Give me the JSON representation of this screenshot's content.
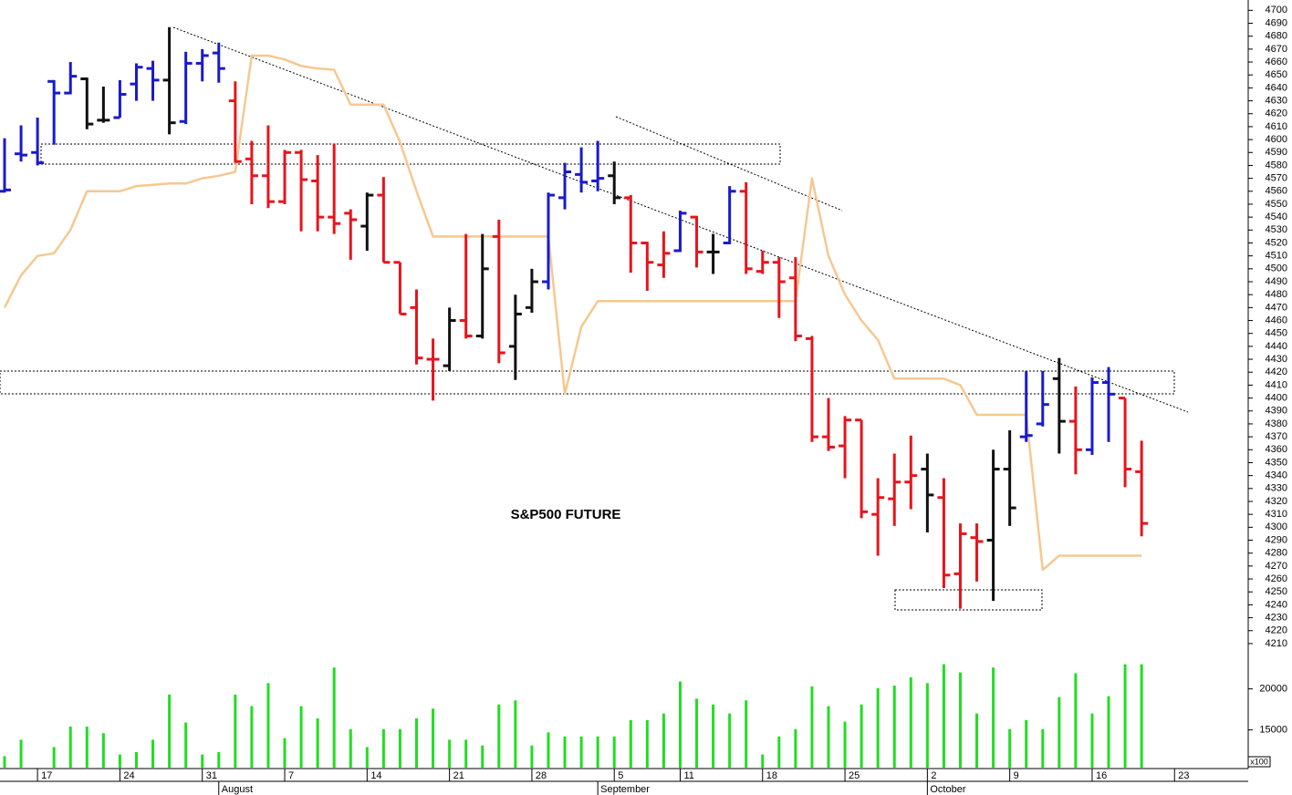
{
  "chart_data": {
    "type": "ohlc",
    "title": "S&P500 FUTURE",
    "categories": [
      null,
      null,
      "17",
      null,
      null,
      null,
      null,
      "24",
      null,
      null,
      null,
      null,
      "31",
      null,
      null,
      null,
      null,
      "7",
      null,
      null,
      null,
      null,
      "14",
      null,
      null,
      null,
      null,
      "21",
      null,
      null,
      null,
      null,
      "28",
      null,
      null,
      null,
      null,
      "5",
      null,
      null,
      null,
      "11",
      null,
      null,
      null,
      null,
      "18",
      null,
      null,
      null,
      null,
      "25",
      null,
      null,
      null,
      null,
      "2",
      null,
      null,
      null,
      null,
      "9",
      null,
      null,
      null,
      null,
      "16",
      null,
      null,
      null,
      null,
      "23"
    ],
    "month_labels": [
      null,
      null,
      null,
      null,
      null,
      null,
      null,
      null,
      null,
      null,
      null,
      null,
      null,
      "August",
      null,
      null,
      null,
      null,
      null,
      null,
      null,
      null,
      null,
      null,
      null,
      null,
      null,
      null,
      null,
      null,
      null,
      null,
      null,
      null,
      null,
      null,
      "September",
      null,
      null,
      null,
      null,
      null,
      null,
      null,
      null,
      null,
      null,
      null,
      null,
      null,
      null,
      null,
      null,
      null,
      null,
      null,
      "October",
      null,
      null,
      null,
      null,
      null,
      null,
      null,
      null,
      null,
      null,
      null,
      null,
      null,
      null,
      null
    ],
    "open": [
      4560,
      4589,
      4590,
      4645,
      4636,
      4647,
      4615,
      4617,
      4643,
      4655,
      4646,
      4614,
      4659,
      4667,
      4630,
      4585,
      4572,
      4552,
      4590,
      4568,
      4540,
      4543,
      4533,
      4557,
      4505,
      4470,
      4430,
      4425,
      4460,
      4448,
      4525,
      4440,
      4470,
      4490,
      4555,
      4573,
      4568,
      4572,
      4555,
      4520,
      4503,
      4514,
      4540,
      4513,
      4520,
      4560,
      4498,
      4505,
      4493,
      4446,
      4370,
      4363,
      4383,
      4310,
      4322,
      4335,
      4345,
      4323,
      4264,
      4292,
      4290,
      4345,
      4370,
      4380,
      4415,
      4382,
      4360,
      4412,
      4400,
      4343,
      null,
      null
    ],
    "high": [
      4601,
      4611,
      4617,
      4646,
      4660,
      4648,
      4641,
      4646,
      4659,
      4661,
      4687,
      4668,
      4670,
      4675,
      4645,
      4599,
      4611,
      4592,
      4592,
      4588,
      4597,
      4546,
      4559,
      4571,
      4505,
      4484,
      4446,
      4470,
      4527,
      4527,
      4538,
      4480,
      4500,
      4559,
      4582,
      4594,
      4599,
      4583,
      4557,
      4521,
      4529,
      4545,
      4541,
      4527,
      4564,
      4567,
      4514,
      4509,
      4509,
      4448,
      4400,
      4386,
      4383,
      4338,
      4357,
      4371,
      4357,
      4338,
      4303,
      4303,
      4360,
      4375,
      4421,
      4421,
      4431,
      4409,
      4416,
      4424,
      4400,
      4367,
      null,
      null
    ],
    "low": [
      4559,
      4583,
      4580,
      4596,
      4635,
      4608,
      4613,
      4617,
      4630,
      4630,
      4604,
      4612,
      4645,
      4644,
      4582,
      4550,
      4547,
      4550,
      4529,
      4529,
      4527,
      4507,
      4514,
      4505,
      4465,
      4426,
      4398,
      4421,
      4446,
      4446,
      4427,
      4414,
      4466,
      4484,
      4546,
      4559,
      4560,
      4550,
      4497,
      4483,
      4493,
      4513,
      4501,
      4496,
      4519,
      4496,
      4496,
      4462,
      4444,
      4366,
      4359,
      4338,
      4307,
      4278,
      4301,
      4314,
      4296,
      4253,
      4237,
      4258,
      4243,
      4301,
      4366,
      4378,
      4357,
      4341,
      4356,
      4366,
      4331,
      4293,
      null,
      null
    ],
    "close": [
      4561,
      4588,
      4582,
      4636,
      4649,
      4612,
      4615,
      4635,
      4656,
      4646,
      4613,
      4659,
      4665,
      4655,
      4583,
      4572,
      4552,
      4590,
      4569,
      4540,
      4535,
      4538,
      4557,
      4505,
      4465,
      4431,
      4430,
      4460,
      4448,
      4500,
      4435,
      4465,
      4490,
      4557,
      4575,
      4567,
      4570,
      4555,
      4520,
      4505,
      4512,
      4543,
      4513,
      4513,
      4560,
      4500,
      4505,
      4490,
      4448,
      4370,
      4362,
      4383,
      4312,
      4323,
      4335,
      4340,
      4325,
      4263,
      4295,
      4289,
      4345,
      4315,
      4371,
      4395,
      4382,
      4360,
      4412,
      4403,
      4345,
      4303,
      null,
      null
    ],
    "colors": [
      "#1a1acc",
      "#1a1acc",
      "#1a1acc",
      "#1a1acc",
      "#1a1acc",
      "#111111",
      "#111111",
      "#1a1acc",
      "#1a1acc",
      "#1a1acc",
      "#111111",
      "#1a1acc",
      "#1a1acc",
      "#1a1acc",
      "#e8141c",
      "#e8141c",
      "#e8141c",
      "#e8141c",
      "#e8141c",
      "#e8141c",
      "#e8141c",
      "#e8141c",
      "#111111",
      "#e8141c",
      "#e8141c",
      "#e8141c",
      "#e8141c",
      "#111111",
      "#e8141c",
      "#111111",
      "#e8141c",
      "#111111",
      "#111111",
      "#1a1acc",
      "#1a1acc",
      "#1a1acc",
      "#1a1acc",
      "#111111",
      "#e8141c",
      "#e8141c",
      "#e8141c",
      "#1a1acc",
      "#e8141c",
      "#111111",
      "#1a1acc",
      "#e8141c",
      "#e8141c",
      "#e8141c",
      "#e8141c",
      "#e8141c",
      "#e8141c",
      "#e8141c",
      "#e8141c",
      "#e8141c",
      "#e8141c",
      "#e8141c",
      "#111111",
      "#e8141c",
      "#e8141c",
      "#e8141c",
      "#111111",
      "#111111",
      "#1a1acc",
      "#1a1acc",
      "#111111",
      "#e8141c",
      "#1a1acc",
      "#1a1acc",
      "#e8141c",
      "#e8141c",
      null,
      null
    ],
    "overlay": {
      "color": "#f5c891",
      "values": [
        4470,
        4495,
        4510,
        4512,
        4530,
        4560,
        4560,
        4560,
        4564,
        4565,
        4566,
        4566,
        4570,
        4572,
        4575,
        4665,
        4665,
        4662,
        4657,
        4655,
        4654,
        4627,
        4627,
        4627,
        4598,
        4560,
        4525,
        4525,
        4525,
        4525,
        4525,
        4525,
        4525,
        4525,
        4403,
        4455,
        4475,
        4475,
        4475,
        4475,
        4475,
        4475,
        4475,
        4475,
        4475,
        4475,
        4475,
        4475,
        4475,
        4570,
        4510,
        4480,
        4460,
        4445,
        4415,
        4415,
        4415,
        4415,
        4410,
        4387,
        4387,
        4387,
        4387,
        4267,
        4278,
        4278,
        4278,
        4278,
        4278,
        4278,
        null,
        null
      ]
    },
    "volume": {
      "color": "#22dd22",
      "unit_label": "x100",
      "ylim": [
        10400,
        23400
      ],
      "yticks": [
        15000,
        20000
      ],
      "values": [
        11800,
        13800,
        null,
        12900,
        15400,
        15400,
        14600,
        12000,
        12300,
        13800,
        19300,
        15900,
        12000,
        12300,
        19300,
        17900,
        20700,
        14000,
        17900,
        16400,
        22600,
        15100,
        12900,
        15100,
        15100,
        16400,
        17600,
        13800,
        13800,
        13100,
        18100,
        18600,
        13100,
        14700,
        14200,
        14200,
        14200,
        14200,
        16200,
        16200,
        17000,
        20900,
        18800,
        18100,
        17000,
        18600,
        12000,
        14200,
        15100,
        20300,
        17900,
        16000,
        18100,
        20100,
        20400,
        21400,
        20700,
        23000,
        22000,
        17000,
        22600,
        15100,
        16200,
        15100,
        19000,
        21900,
        17000,
        19100,
        23000,
        23000,
        null,
        null
      ]
    },
    "ylim": [
      4205,
      4708
    ],
    "yticks": [
      4210,
      4220,
      4230,
      4240,
      4250,
      4260,
      4270,
      4280,
      4290,
      4300,
      4310,
      4320,
      4330,
      4340,
      4350,
      4360,
      4370,
      4380,
      4390,
      4400,
      4410,
      4420,
      4430,
      4440,
      4450,
      4460,
      4470,
      4480,
      4490,
      4500,
      4510,
      4520,
      4530,
      4540,
      4550,
      4560,
      4570,
      4580,
      4590,
      4600,
      4610,
      4620,
      4630,
      4640,
      4650,
      4660,
      4670,
      4680,
      4690,
      4700
    ]
  }
}
